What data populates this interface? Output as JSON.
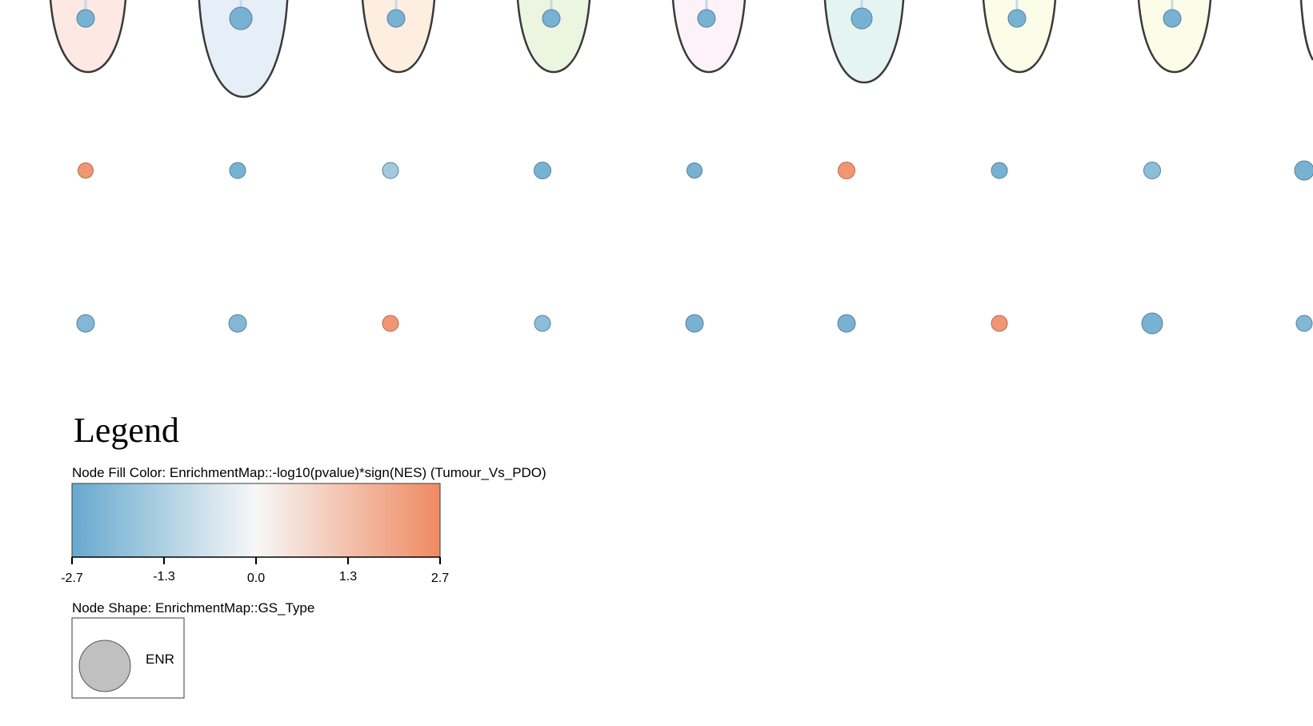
{
  "network": {
    "clusters": [
      {
        "fill": "#fde8e3",
        "node_value": -2.4
      },
      {
        "fill": "#e6eef7",
        "node_value": -2.4
      },
      {
        "fill": "#fdeee0",
        "node_value": -2.4
      },
      {
        "fill": "#ecf5e0",
        "node_value": -2.4
      },
      {
        "fill": "#fdf2f8",
        "node_value": -2.4
      },
      {
        "fill": "#e4f4f1",
        "node_value": -2.4
      },
      {
        "fill": "#fcfde8",
        "node_value": -2.4
      },
      {
        "fill": "#fcfde8",
        "node_value": -2.4
      }
    ],
    "row_middle": [
      2.4,
      -2.4,
      -1.6,
      -2.4,
      -2.4,
      2.4,
      -2.4,
      -2.0,
      -2.4
    ],
    "row_bottom": [
      -2.2,
      -2.2,
      2.4,
      -2.0,
      -2.4,
      -2.4,
      2.4,
      -2.4,
      -2.2
    ]
  },
  "legend": {
    "title": "Legend",
    "fill_label": "Node Fill Color:  EnrichmentMap::-log10(pvalue)*sign(NES) (Tumour_Vs_PDO)",
    "color_low": "#67a9cf",
    "color_mid": "#f7f7f7",
    "color_high": "#ef8a62",
    "ticks": [
      "-2.7",
      "-1.3",
      "0.0",
      "1.3",
      "2.7"
    ],
    "shape_label": "Node Shape:  EnrichmentMap::GS_Type",
    "shape_name": "ENR"
  }
}
